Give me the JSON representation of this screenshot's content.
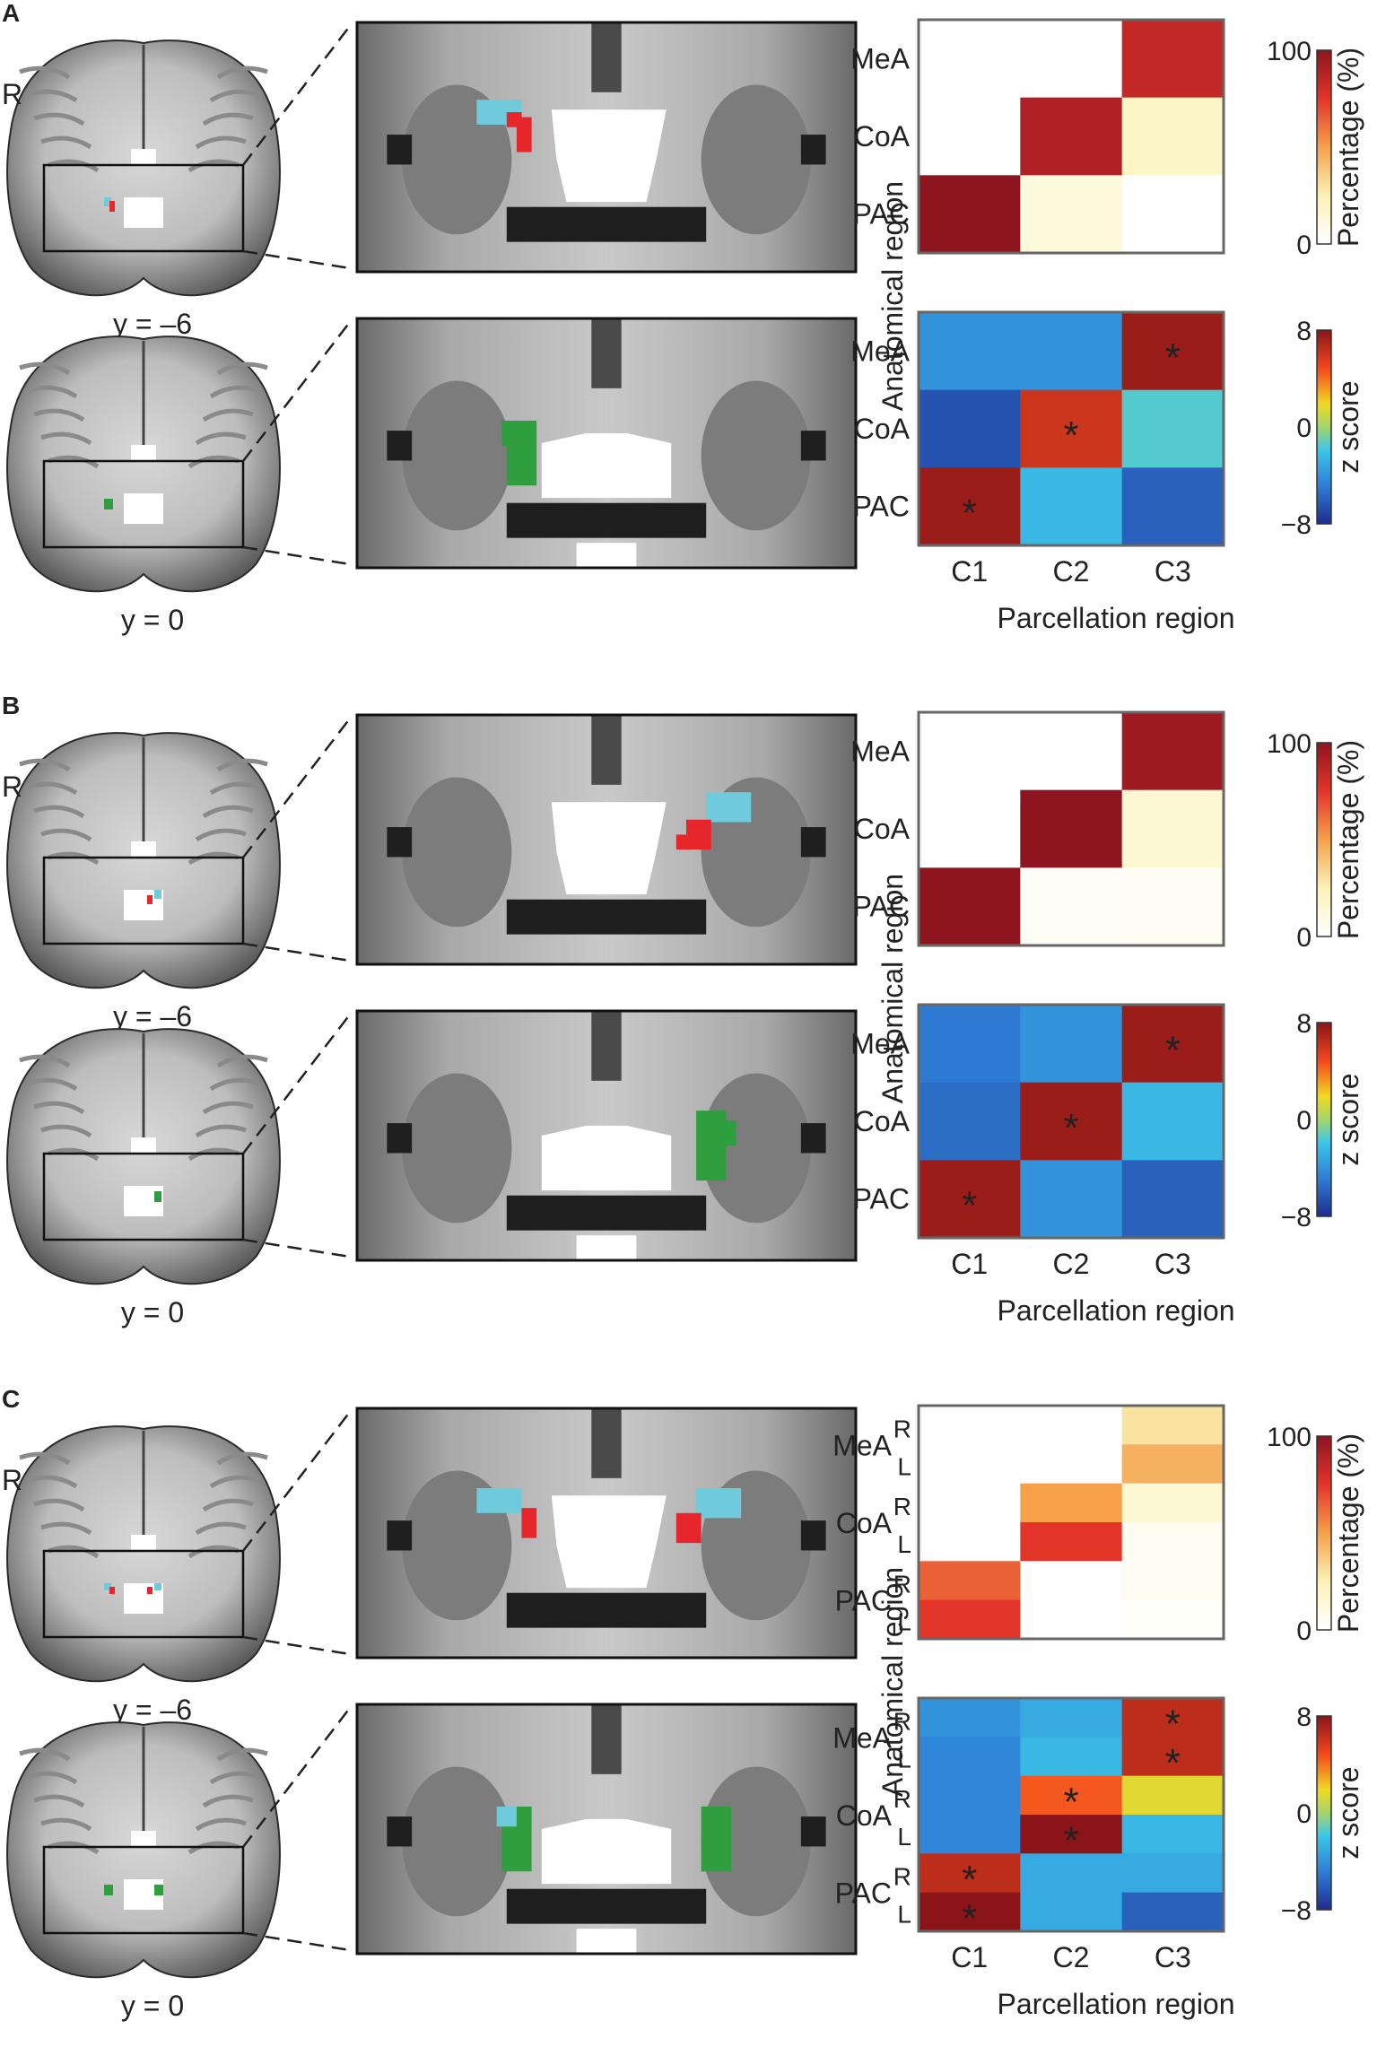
{
  "panels": [
    {
      "letter": "A",
      "brain": {
        "hemisphere_label": "R",
        "slices": [
          "y = –6",
          "y = 0"
        ]
      },
      "axes": {
        "ylabel": "Anatomical region",
        "xlabel": "Parcellation region"
      },
      "rows": [
        "MeA",
        "CoA",
        "PAC"
      ],
      "cols": [
        "C1",
        "C2",
        "C3"
      ],
      "percentage_matrix": [
        [
          0,
          0,
          85
        ],
        [
          0,
          90,
          20
        ],
        [
          100,
          12,
          0
        ]
      ],
      "zscore_matrix": [
        [
          -4,
          -4,
          7.5
        ],
        [
          -6.5,
          6,
          -1.5
        ],
        [
          7.5,
          -2.5,
          -6
        ]
      ],
      "significant": [
        [
          false,
          false,
          true
        ],
        [
          false,
          true,
          false
        ],
        [
          true,
          false,
          false
        ]
      ]
    },
    {
      "letter": "B",
      "brain": {
        "hemisphere_label": "R",
        "slices": [
          "y = –6",
          "y = 0"
        ]
      },
      "axes": {
        "ylabel": "Anatomical region",
        "xlabel": "Parcellation region"
      },
      "rows": [
        "MeA",
        "CoA",
        "PAC"
      ],
      "cols": [
        "C1",
        "C2",
        "C3"
      ],
      "percentage_matrix": [
        [
          0,
          0,
          95
        ],
        [
          0,
          100,
          15
        ],
        [
          100,
          3,
          4
        ]
      ],
      "zscore_matrix": [
        [
          -5,
          -4,
          7.5
        ],
        [
          -5.5,
          7.5,
          -2.5
        ],
        [
          7.5,
          -4,
          -6
        ]
      ],
      "significant": [
        [
          false,
          false,
          true
        ],
        [
          false,
          true,
          false
        ],
        [
          true,
          false,
          false
        ]
      ]
    },
    {
      "letter": "C",
      "brain": {
        "hemisphere_label": "R",
        "slices": [
          "y = –6",
          "y = 0"
        ]
      },
      "axes": {
        "ylabel": "Anatomical region",
        "xlabel": "Parcellation region"
      },
      "rows": [
        "MeA",
        "CoA",
        "PAC"
      ],
      "sub_rows": [
        "R",
        "L"
      ],
      "cols": [
        "C1",
        "C2",
        "C3"
      ],
      "percentage_matrix": [
        [
          0,
          0,
          30
        ],
        [
          0,
          0,
          45
        ],
        [
          0,
          50,
          15
        ],
        [
          0,
          75,
          5
        ],
        [
          65,
          0,
          5
        ],
        [
          75,
          0,
          2
        ]
      ],
      "zscore_matrix": [
        [
          -4,
          -3,
          6.5
        ],
        [
          -4.5,
          -2.5,
          6.5
        ],
        [
          -4.5,
          4.5,
          1.5
        ],
        [
          -4.5,
          8,
          -2.5
        ],
        [
          6.5,
          -3,
          -3
        ],
        [
          8,
          -3,
          -6
        ]
      ],
      "significant": [
        [
          false,
          false,
          true
        ],
        [
          false,
          false,
          true
        ],
        [
          false,
          true,
          false
        ],
        [
          false,
          true,
          false
        ],
        [
          true,
          false,
          false
        ],
        [
          true,
          false,
          false
        ]
      ]
    }
  ],
  "colorbars": {
    "percentage": {
      "label": "Percentage (%)",
      "ticks": [
        "100",
        "0"
      ],
      "range": [
        0,
        100
      ]
    },
    "zscore": {
      "label": "z score",
      "ticks": [
        "8",
        "0",
        "−8"
      ],
      "range": [
        -8,
        8
      ]
    }
  },
  "colors": {
    "cluster_c1": "#e6262b",
    "cluster_c2": "#6fcbdc",
    "cluster_c3": "#2e9e3f",
    "frame": "#222222"
  },
  "significance_marker": "*"
}
